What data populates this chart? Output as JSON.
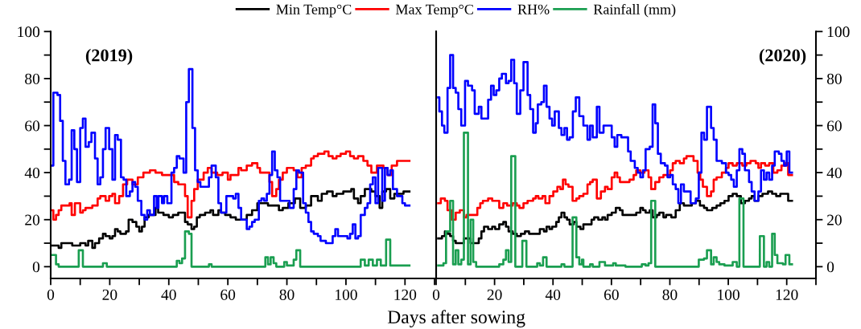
{
  "chart_data": [
    {
      "type": "step",
      "title": "(2019)",
      "xlabel": "Days after sowing",
      "legend": "top",
      "xlim": [
        0,
        130
      ],
      "ylim": [
        -5,
        100
      ],
      "xticks": [
        0,
        {
          "value": 10,
          "label": null
        },
        20,
        {
          "value": 30,
          "label": null
        },
        40,
        {
          "value": 50,
          "label": null
        },
        60,
        {
          "value": 70,
          "label": null
        },
        80,
        {
          "value": 90,
          "label": null
        },
        100,
        {
          "value": 110,
          "label": null
        },
        120,
        {
          "value": 130,
          "label": null
        }
      ],
      "yticks": [
        0,
        {
          "value": 10,
          "label": null
        },
        20,
        {
          "value": 30,
          "label": null
        },
        40,
        {
          "value": 50,
          "label": null
        },
        60,
        {
          "value": 70,
          "label": null
        },
        80,
        {
          "value": 90,
          "label": null
        },
        100
      ],
      "series": [
        {
          "name": "Min Temp°C",
          "color": "#000000",
          "x": [
            0.5,
            2.7,
            3.6,
            7.3,
            10,
            11.8,
            12.7,
            14.1,
            15,
            16.4,
            17.7,
            18.6,
            20,
            20.9,
            21.8,
            22.7,
            23.6,
            25.5,
            26.4,
            27.7,
            29,
            30,
            30.9,
            31.8,
            33.2,
            35.5,
            36.4,
            38.2,
            40,
            41.4,
            43.2,
            45.5,
            46.4,
            47.7,
            48.6,
            49.5,
            50.5,
            52.3,
            54.1,
            55,
            56.8,
            57.7,
            59.1,
            60.9,
            62.7,
            66.4,
            68.2,
            70,
            73.6,
            77.3,
            78.6,
            80.5,
            82.7,
            84.5,
            86.4,
            88.2,
            90.5,
            91.8,
            93.6,
            95.5,
            96.8,
            99.1,
            101.8,
            102.7,
            104.1,
            105,
            106.4,
            108.6,
            110,
            111.4,
            112.3,
            113.6,
            115,
            116.4,
            119.5,
            121.5
          ],
          "values": [
            9,
            8,
            10,
            9,
            10,
            9,
            11,
            8,
            10,
            12,
            14,
            13,
            12,
            13,
            16,
            15,
            14,
            15,
            20,
            19,
            17,
            15,
            17,
            21,
            22,
            25,
            23,
            22,
            21,
            22,
            23,
            19,
            18,
            16,
            17,
            21,
            22,
            23,
            24,
            22,
            24,
            23,
            22,
            21,
            20,
            22,
            24,
            27,
            26,
            24,
            25,
            27,
            29,
            25,
            26,
            30,
            28,
            31,
            32,
            30,
            31,
            32,
            33,
            29,
            27,
            30,
            33,
            32,
            30,
            25,
            32,
            33,
            29,
            31,
            32,
            32
          ]
        },
        {
          "name": "Max Temp°C",
          "color": "#ff0000",
          "x": [
            0.5,
            0.9,
            1.8,
            2.7,
            3.6,
            6.4,
            7.1,
            8.2,
            10,
            10.9,
            11.8,
            14.1,
            15.9,
            16.8,
            18.6,
            19.8,
            20.9,
            21.8,
            23.2,
            24.5,
            25.9,
            27.7,
            29.5,
            31.4,
            33.6,
            35.5,
            37.7,
            41.8,
            43.2,
            45.5,
            46.4,
            47.7,
            48.6,
            49.8,
            51.8,
            53.2,
            54.5,
            56.4,
            58.2,
            60,
            60.9,
            63.6,
            64.5,
            66.4,
            68.2,
            70,
            70.9,
            74.1,
            75,
            76.4,
            77.3,
            78.6,
            80,
            82.3,
            83.6,
            85,
            86.4,
            88.2,
            89.1,
            90.5,
            92.7,
            94.1,
            95.5,
            96.8,
            98.2,
            100,
            101.4,
            102.7,
            104.1,
            105.9,
            107.3,
            108.6,
            110.5,
            112.7,
            114.1,
            115.5,
            117.3,
            121.5
          ],
          "values": [
            24,
            20,
            22,
            24,
            26,
            27,
            22,
            27,
            23,
            24,
            25,
            26,
            29,
            30,
            28,
            30,
            31,
            27,
            30,
            35,
            37,
            35,
            38,
            40,
            41,
            40,
            39,
            36,
            35,
            30,
            21,
            28,
            33,
            37,
            40,
            42,
            40,
            39,
            40,
            37,
            39,
            42,
            41,
            43,
            44,
            42,
            40,
            36,
            30,
            33,
            37,
            40,
            42,
            41,
            38,
            42,
            43,
            46,
            47,
            48,
            49,
            47,
            46,
            47,
            48,
            49,
            47,
            46,
            47,
            45,
            43,
            40,
            43,
            42,
            39,
            43,
            45,
            45
          ]
        },
        {
          "name": "RH%",
          "color": "#0000ff",
          "x": [
            0.5,
            0.9,
            2.3,
            3.2,
            4.1,
            5,
            6.2,
            7.1,
            8,
            8.9,
            10,
            10.9,
            11.8,
            12.9,
            13.8,
            15,
            15.9,
            16.8,
            17.7,
            18.6,
            19.8,
            20.9,
            21.8,
            22.7,
            23.8,
            24.7,
            25.6,
            26.8,
            27.7,
            28.6,
            29.5,
            30.7,
            31.8,
            32.7,
            33.6,
            35,
            35.9,
            36.5,
            37.7,
            38.4,
            39.5,
            40.9,
            41.8,
            42.7,
            43.6,
            45,
            45.9,
            46.8,
            48,
            48.9,
            49.8,
            50.7,
            53.6,
            54.5,
            55.9,
            56.8,
            57.7,
            59.5,
            61.8,
            62.7,
            63.6,
            64.5,
            66.4,
            67.3,
            68.2,
            69.1,
            70.5,
            71.4,
            72.3,
            73.2,
            74.1,
            75,
            75.9,
            76.8,
            77.7,
            80.9,
            82.3,
            83.2,
            84.1,
            85.5,
            86.4,
            87.3,
            88.2,
            89.1,
            90.5,
            91.4,
            93.2,
            95.5,
            96.4,
            97.3,
            100.5,
            101.4,
            102.3,
            103.2,
            104.1,
            105,
            106.4,
            107.3,
            108.2,
            109.1,
            110,
            110.9,
            112.3,
            113.2,
            114.1,
            115,
            115.9,
            117.3,
            119.1,
            120,
            121.5
          ],
          "values": [
            43,
            74,
            73,
            62,
            45,
            35,
            37,
            58,
            50,
            36,
            59,
            63,
            51,
            53,
            57,
            46,
            35,
            38,
            50,
            59,
            50,
            37,
            56,
            54,
            38,
            37,
            30,
            32,
            36,
            34,
            28,
            22,
            20,
            24,
            22,
            30,
            25,
            30,
            27,
            30,
            27,
            40,
            42,
            47,
            46,
            40,
            70,
            84,
            59,
            41,
            36,
            34,
            38,
            43,
            38,
            27,
            23,
            30,
            29,
            31,
            25,
            20,
            16,
            17,
            19,
            20,
            28,
            29,
            28,
            31,
            39,
            49,
            41,
            38,
            28,
            25,
            33,
            41,
            40,
            27,
            23,
            19,
            15,
            14,
            13,
            11,
            10,
            13,
            16,
            13,
            12,
            14,
            18,
            12,
            13,
            22,
            25,
            27,
            35,
            38,
            27,
            42,
            28,
            42,
            39,
            41,
            33,
            30,
            27,
            26,
            26
          ]
        },
        {
          "name": "Rainfall (mm)",
          "color": "#1a9e50",
          "x": [
            0.5,
            1.8,
            2.7,
            9.5,
            10.9,
            17.7,
            19,
            42.7,
            43.6,
            44.5,
            45.5,
            46.8,
            47.7,
            53.6,
            54.5,
            72.7,
            73.6,
            74.5,
            75.5,
            76.4,
            79.1,
            80,
            82.3,
            83.2,
            84.5,
            105,
            106.4,
            107.7,
            109.1,
            110.5,
            111.8,
            113.6,
            115,
            121.5
          ],
          "values": [
            5,
            1,
            0,
            7,
            0,
            1.5,
            0,
            2.5,
            1.5,
            3.5,
            15,
            14,
            0,
            1,
            0,
            4,
            1,
            4,
            1.5,
            0,
            2,
            0.5,
            3,
            7,
            0,
            3,
            0.5,
            3,
            0.5,
            3,
            0.5,
            11.5,
            0.5,
            0.5
          ]
        }
      ]
    },
    {
      "type": "step",
      "title": "(2020)",
      "xlim": [
        0,
        130
      ],
      "y2lim": [
        -5,
        100
      ],
      "xticks": [
        0,
        {
          "value": 10,
          "label": null
        },
        20,
        {
          "value": 30,
          "label": null
        },
        40,
        {
          "value": 50,
          "label": null
        },
        60,
        {
          "value": 70,
          "label": null
        },
        80,
        {
          "value": 90,
          "label": null
        },
        100,
        {
          "value": 110,
          "label": null
        },
        120,
        {
          "value": 130,
          "label": null
        }
      ],
      "y2ticks": [
        0,
        {
          "value": 10,
          "label": null
        },
        20,
        {
          "value": 30,
          "label": null
        },
        40,
        {
          "value": 50,
          "label": null
        },
        60,
        {
          "value": 70,
          "label": null
        },
        80,
        {
          "value": 90,
          "label": null
        },
        100
      ],
      "series": [
        {
          "color": "#000000",
          "axis": "y2",
          "x": [
            0.7,
            2,
            3,
            3.9,
            4.8,
            5.8,
            6.7,
            9.5,
            11.8,
            14.6,
            15.5,
            16.4,
            17.8,
            19.2,
            20.2,
            21.6,
            23,
            23.9,
            24.8,
            26.2,
            27.6,
            29,
            30.4,
            31.8,
            35.5,
            36.9,
            37.8,
            38.8,
            39.7,
            41.1,
            42,
            42.9,
            43.9,
            44.8,
            45.7,
            47.1,
            48,
            49.4,
            50.4,
            53.2,
            54.1,
            55.5,
            56.9,
            57.8,
            58.7,
            60.1,
            61.5,
            62.9,
            63.8,
            64.8,
            68.5,
            69.9,
            70.8,
            71.7,
            73.1,
            74.1,
            75.5,
            76.4,
            77.8,
            78.7,
            80.5,
            82,
            83.4,
            84.8,
            87.5,
            88.9,
            90.3,
            91.7,
            92.7,
            94.5,
            96,
            97.3,
            98.7,
            100.1,
            101.5,
            102.9,
            104.3,
            105.7,
            107.1,
            108,
            109,
            110.3,
            111.7,
            113.6,
            115,
            116.4,
            117.8,
            120.5,
            121.8
          ],
          "values": [
            12,
            13,
            15,
            14,
            13,
            11,
            10,
            12,
            10,
            12,
            15,
            17,
            16,
            17,
            16,
            18,
            19,
            17,
            15,
            14,
            13,
            14,
            15,
            14,
            16,
            15,
            17,
            16,
            17,
            19,
            21,
            23,
            21,
            20,
            18,
            19,
            17,
            16,
            18,
            20,
            21,
            20,
            21,
            20,
            22,
            23,
            25,
            24,
            22,
            22,
            23,
            25,
            24,
            23,
            24,
            21,
            22,
            23,
            21,
            22,
            21,
            24,
            27,
            26,
            27,
            28,
            26,
            25,
            24,
            25,
            26,
            27,
            28,
            30,
            31,
            30,
            27,
            28,
            29,
            30,
            28,
            30,
            31,
            32,
            31,
            30,
            31,
            28,
            28
          ]
        },
        {
          "color": "#ff0000",
          "axis": "y2",
          "x": [
            0.7,
            1.6,
            3,
            3.9,
            5.3,
            6.7,
            8.1,
            9.5,
            10.4,
            14.1,
            15.1,
            16,
            17.8,
            19.2,
            21.6,
            23,
            24.3,
            26.2,
            27.6,
            28.5,
            29.9,
            31.3,
            33.2,
            34.1,
            35,
            36.4,
            37.4,
            38.8,
            40.1,
            41.5,
            42.5,
            43.4,
            44.3,
            45.3,
            46.7,
            48,
            49,
            50.4,
            51.8,
            52.7,
            53.6,
            55,
            56.4,
            57.8,
            58.7,
            60.1,
            61.1,
            62,
            62.9,
            64.8,
            66.2,
            67.6,
            68.5,
            69.9,
            71.3,
            72.7,
            73.6,
            75,
            76.4,
            77.8,
            80.1,
            81,
            82,
            83.4,
            84.8,
            85.7,
            88.1,
            89.5,
            90.4,
            91.3,
            92.7,
            94.1,
            95,
            96,
            97.8,
            99.2,
            100.1,
            101.5,
            102.9,
            104.8,
            106.2,
            107.6,
            109.4,
            110.3,
            111.2,
            112.6,
            114,
            115.4,
            116.8,
            118.2,
            119.6,
            120.5,
            121.8
          ],
          "values": [
            27,
            29,
            28,
            24,
            20,
            23,
            24,
            21,
            22,
            25,
            27,
            28,
            29,
            28,
            25,
            27,
            26,
            27,
            26,
            25,
            27,
            28,
            29,
            30,
            29,
            30,
            27,
            30,
            32,
            34,
            33,
            37,
            35,
            34,
            28,
            29,
            30,
            31,
            35,
            36,
            37,
            29,
            32,
            34,
            33,
            38,
            40,
            38,
            36,
            36,
            37,
            39,
            41,
            40,
            41,
            38,
            33,
            36,
            38,
            39,
            41,
            44,
            45,
            44,
            46,
            47,
            45,
            40,
            37,
            34,
            30,
            32,
            37,
            38,
            40,
            42,
            44,
            43,
            44,
            43,
            44,
            45,
            44,
            42,
            44,
            43,
            44,
            40,
            41,
            43,
            44,
            39,
            39
          ]
        },
        {
          "color": "#0000ff",
          "axis": "y2",
          "x": [
            0.7,
            1.1,
            2,
            2.8,
            3.9,
            4.8,
            5.8,
            6.7,
            7.6,
            8.6,
            9.9,
            10.9,
            12.3,
            13.2,
            14.6,
            15.5,
            17.8,
            18.8,
            19.7,
            20.6,
            21.6,
            22.5,
            23.9,
            24.8,
            25.7,
            26.7,
            27.6,
            28.8,
            29.9,
            31.3,
            32.2,
            33.2,
            34.1,
            34.8,
            36,
            36.9,
            37.8,
            38.8,
            39.7,
            40.6,
            42,
            42.9,
            43.9,
            44.8,
            45.7,
            46.8,
            47.8,
            49,
            50.4,
            51.8,
            52.7,
            53.6,
            55,
            55.9,
            57.3,
            60.1,
            61.1,
            62,
            63.4,
            64.8,
            65.7,
            66.6,
            68,
            69,
            69.9,
            70.8,
            71.7,
            73.1,
            74.1,
            75,
            75.9,
            76.9,
            78.3,
            79.2,
            80.1,
            81,
            82,
            82.9,
            83.8,
            84.8,
            87.1,
            88.9,
            89.9,
            90.8,
            91.7,
            92.7,
            94.1,
            95,
            96,
            97.8,
            99.2,
            100.1,
            101,
            101.9,
            102.9,
            103.8,
            104.8,
            105.7,
            107.1,
            108,
            109,
            110.3,
            111.2,
            112.2,
            113.1,
            114,
            115,
            115.9,
            117.3,
            118.2,
            119.1,
            120,
            120.9,
            121.8
          ],
          "values": [
            72,
            66,
            60,
            57,
            76,
            90,
            76,
            74,
            67,
            60,
            79,
            77,
            75,
            65,
            68,
            63,
            71,
            77,
            73,
            75,
            80,
            82,
            78,
            79,
            88,
            78,
            65,
            75,
            87,
            73,
            67,
            57,
            61,
            69,
            70,
            77,
            68,
            63,
            60,
            66,
            59,
            56,
            59,
            54,
            55,
            66,
            72,
            64,
            60,
            54,
            60,
            55,
            68,
            57,
            60,
            55,
            51,
            56,
            55,
            55,
            49,
            45,
            42,
            40,
            38,
            41,
            50,
            51,
            69,
            61,
            48,
            44,
            43,
            38,
            39,
            35,
            33,
            27,
            35,
            32,
            27,
            29,
            40,
            57,
            54,
            68,
            59,
            54,
            45,
            44,
            40,
            39,
            37,
            34,
            41,
            50,
            48,
            41,
            36,
            32,
            28,
            32,
            41,
            37,
            40,
            37,
            43,
            49,
            48,
            45,
            43,
            49,
            40,
            40
          ]
        },
        {
          "color": "#1a9e50",
          "axis": "y2",
          "x": [
            0.7,
            2.5,
            3.4,
            4.8,
            5.8,
            6.7,
            7.6,
            8.6,
            9.5,
            10.9,
            11.8,
            12.7,
            13.7,
            21.6,
            23,
            23.9,
            24.8,
            25.7,
            27.1,
            29.5,
            30.9,
            34.6,
            35.5,
            36.6,
            37.8,
            42.9,
            43.9,
            46.7,
            48,
            49,
            49.9,
            50.4,
            52.7,
            53.6,
            55.9,
            57.8,
            60.6,
            61.5,
            64.8,
            70.4,
            71.7,
            72.7,
            73.6,
            75,
            89.9,
            91.7,
            92.7,
            94.1,
            95,
            96,
            96.9,
            98.7,
            101.5,
            102.9,
            103.8,
            105.2,
            110.8,
            112.2,
            113.1,
            114,
            115,
            115.9,
            116.8,
            118.7,
            119.6,
            120.9,
            121.8
          ],
          "values": [
            0.5,
            1.5,
            15,
            28,
            1,
            7,
            1,
            3,
            57,
            1,
            20,
            2,
            0,
            1,
            3,
            7,
            2,
            47,
            0,
            11,
            0,
            1.5,
            0.5,
            4,
            0,
            1,
            0,
            21,
            4,
            1,
            3,
            0,
            1,
            0,
            2,
            0.5,
            1.5,
            0.5,
            0,
            1,
            0.5,
            1.5,
            28,
            0,
            3,
            3.5,
            7,
            1,
            4,
            2,
            1,
            0.5,
            2,
            0,
            29,
            0,
            13,
            0,
            2,
            0,
            14,
            5,
            1.5,
            1,
            5,
            1,
            1
          ]
        }
      ]
    }
  ]
}
